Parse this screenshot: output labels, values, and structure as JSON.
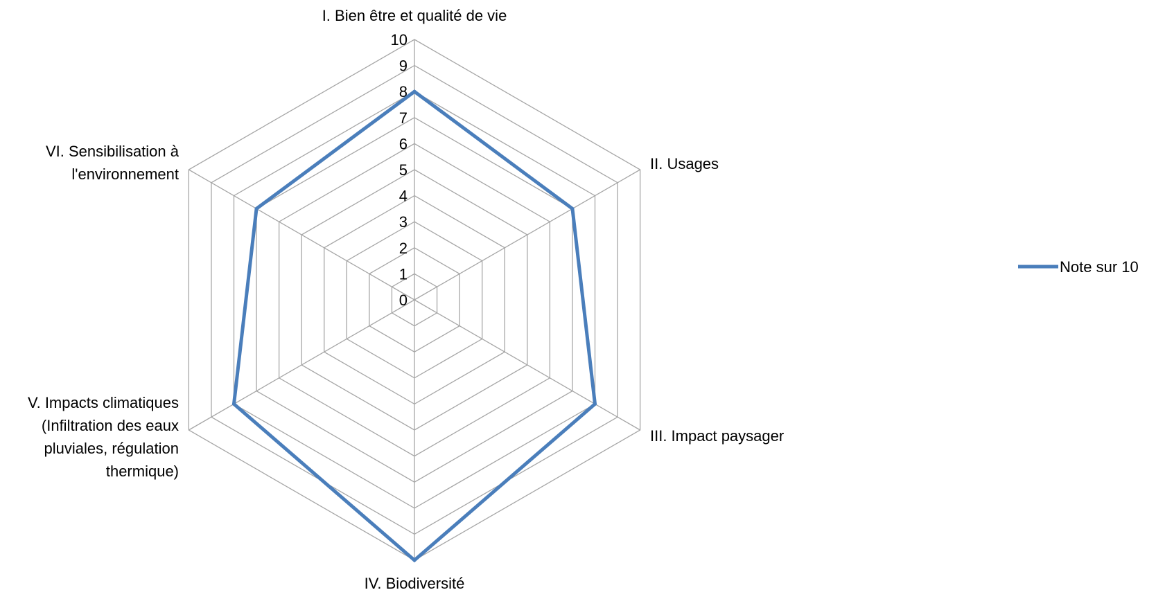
{
  "chart_data": {
    "type": "radar",
    "title": "",
    "categories": [
      "I. Bien être et qualité de vie",
      "II. Usages",
      "III. Impact paysager",
      "IV. Biodiversité",
      "V. Impacts climatiques (Infiltration des eaux pluviales, régulation thermique)",
      "VI. Sensibilisation à l'environnement"
    ],
    "category_lines": [
      [
        "I. Bien être et qualité de vie"
      ],
      [
        "II. Usages"
      ],
      [
        "III. Impact paysager"
      ],
      [
        "IV. Biodiversité"
      ],
      [
        "V. Impacts climatiques",
        "(Infiltration des eaux",
        "pluviales, régulation",
        "thermique)"
      ],
      [
        "VI. Sensibilisation à",
        "l'environnement"
      ]
    ],
    "series": [
      {
        "name": "Note sur 10",
        "values": [
          8,
          7,
          8,
          10,
          8,
          7
        ],
        "color": "#4a7ebb"
      }
    ],
    "rlim": [
      0,
      10
    ],
    "ticks": [
      "0",
      "1",
      "2",
      "3",
      "4",
      "5",
      "6",
      "7",
      "8",
      "9",
      "10"
    ],
    "grid": true,
    "grid_color": "#a6a6a6",
    "legend_position": "right"
  }
}
